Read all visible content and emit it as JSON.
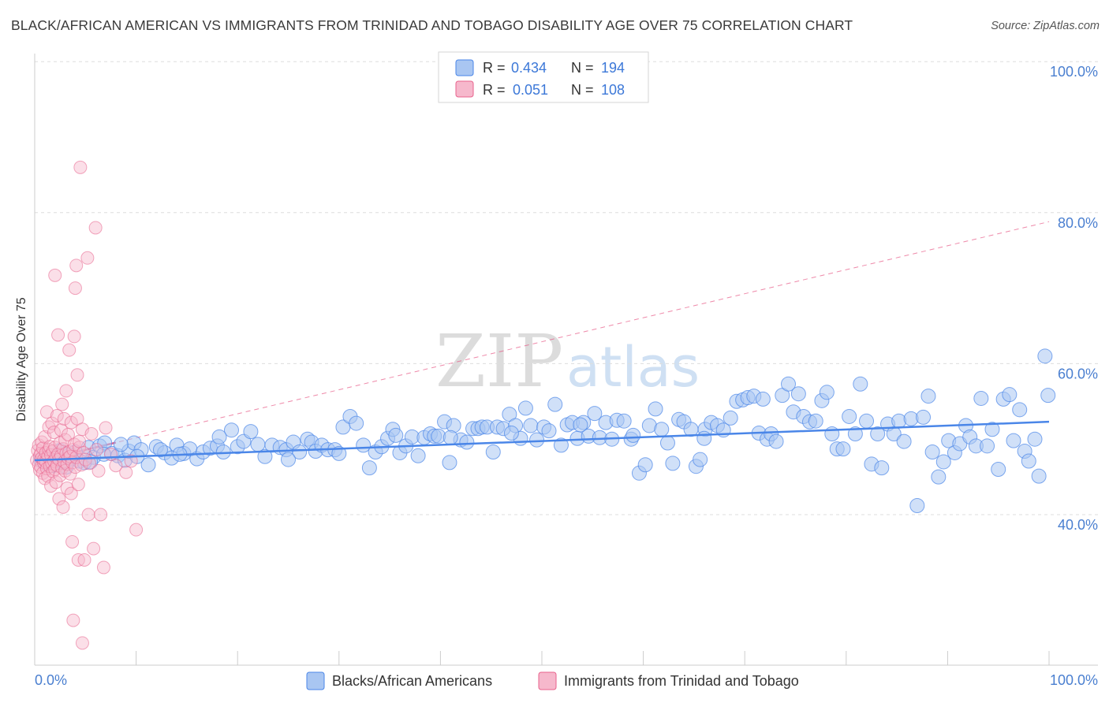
{
  "title": "BLACK/AFRICAN AMERICAN VS IMMIGRANTS FROM TRINIDAD AND TOBAGO DISABILITY AGE OVER 75 CORRELATION CHART",
  "source": "Source: ZipAtlas.com",
  "watermark": {
    "part1": "ZIP",
    "part2": "atlas"
  },
  "colors": {
    "blue": "#4a86e8",
    "blue_fill": "#a9c6f2",
    "pink": "#e8628c",
    "pink_fill": "#f6b8cc",
    "axis_label": "#4a7fd0"
  },
  "legend": {
    "rows": [
      {
        "r_label": "R =",
        "r_value": "0.434",
        "n_label": "N =",
        "n_value": "194"
      },
      {
        "r_label": "R =",
        "r_value": "0.051",
        "n_label": "N =",
        "n_value": "108"
      }
    ]
  },
  "bottom_legend": [
    "Blacks/African Americans",
    "Immigrants from Trinidad and Tobago"
  ],
  "chart_data": {
    "type": "scatter",
    "title": "BLACK/AFRICAN AMERICAN VS IMMIGRANTS FROM TRINIDAD AND TOBAGO DISABILITY AGE OVER 75 CORRELATION CHART",
    "xlabel": "",
    "ylabel": "Disability Age Over 75",
    "xlim": [
      0,
      100
    ],
    "ylim": [
      20,
      102
    ],
    "x_tick_labels": [
      "0.0%",
      "100.0%"
    ],
    "y_ticks": [
      40,
      60,
      80,
      100
    ],
    "y_tick_labels": [
      "40.0%",
      "60.0%",
      "80.0%",
      "100.0%"
    ],
    "grid": "horizontal dashed",
    "legend_placement": "top-center",
    "series": [
      {
        "name": "Blacks/African Americans",
        "color": "#4a86e8",
        "R": 0.434,
        "N": 194,
        "trend": {
          "x": [
            0,
            100
          ],
          "y": [
            47.2,
            52.3
          ]
        },
        "points": [
          [
            0.6,
            47.2
          ],
          [
            1.0,
            46.8
          ],
          [
            1.3,
            47.5
          ],
          [
            1.8,
            46.5
          ],
          [
            2.2,
            47.8
          ],
          [
            2.7,
            47.0
          ],
          [
            3.1,
            46.3
          ],
          [
            3.6,
            47.4
          ],
          [
            4.0,
            48.3
          ],
          [
            4.4,
            47.1
          ],
          [
            4.9,
            46.9
          ],
          [
            5.3,
            48.9
          ],
          [
            5.8,
            47.6
          ],
          [
            6.4,
            49.1
          ],
          [
            6.9,
            49.5
          ],
          [
            7.6,
            48.1
          ],
          [
            8.2,
            47.8
          ],
          [
            8.9,
            47.2
          ],
          [
            9.3,
            48.4
          ],
          [
            9.8,
            49.5
          ],
          [
            10.5,
            48.6
          ],
          [
            11.2,
            46.6
          ],
          [
            12.0,
            49.0
          ],
          [
            12.8,
            48.2
          ],
          [
            13.5,
            47.5
          ],
          [
            14.0,
            49.2
          ],
          [
            14.7,
            48.1
          ],
          [
            15.3,
            48.7
          ],
          [
            16.0,
            47.4
          ],
          [
            16.6,
            48.3
          ],
          [
            17.3,
            48.8
          ],
          [
            18.0,
            49.1
          ],
          [
            18.6,
            48.3
          ],
          [
            19.4,
            51.2
          ],
          [
            20.0,
            49.0
          ],
          [
            20.6,
            49.7
          ],
          [
            21.3,
            51.0
          ],
          [
            22.0,
            49.3
          ],
          [
            22.7,
            47.7
          ],
          [
            23.4,
            49.2
          ],
          [
            24.2,
            48.9
          ],
          [
            24.8,
            48.6
          ],
          [
            25.5,
            49.6
          ],
          [
            26.1,
            48.3
          ],
          [
            26.9,
            50.0
          ],
          [
            27.3,
            49.6
          ],
          [
            27.7,
            48.4
          ],
          [
            28.3,
            49.2
          ],
          [
            28.9,
            48.6
          ],
          [
            29.6,
            48.6
          ],
          [
            30.4,
            51.6
          ],
          [
            31.1,
            53.0
          ],
          [
            31.7,
            52.1
          ],
          [
            32.4,
            49.2
          ],
          [
            33.0,
            46.2
          ],
          [
            33.6,
            48.3
          ],
          [
            34.2,
            49.0
          ],
          [
            34.8,
            50.1
          ],
          [
            35.3,
            51.3
          ],
          [
            36.0,
            48.2
          ],
          [
            36.6,
            49.1
          ],
          [
            37.2,
            50.3
          ],
          [
            37.8,
            47.8
          ],
          [
            38.4,
            50.2
          ],
          [
            39.0,
            50.7
          ],
          [
            39.4,
            50.4
          ],
          [
            39.8,
            50.4
          ],
          [
            40.4,
            52.3
          ],
          [
            40.9,
            46.9
          ],
          [
            41.3,
            51.8
          ],
          [
            42.0,
            49.9
          ],
          [
            42.6,
            49.6
          ],
          [
            43.2,
            51.4
          ],
          [
            43.7,
            51.4
          ],
          [
            44.1,
            51.6
          ],
          [
            44.6,
            51.6
          ],
          [
            45.2,
            48.3
          ],
          [
            45.6,
            51.6
          ],
          [
            46.2,
            51.4
          ],
          [
            46.8,
            53.3
          ],
          [
            47.4,
            51.8
          ],
          [
            47.9,
            50.1
          ],
          [
            48.4,
            54.1
          ],
          [
            48.9,
            51.8
          ],
          [
            49.5,
            49.9
          ],
          [
            50.2,
            51.6
          ],
          [
            50.7,
            51.1
          ],
          [
            51.3,
            54.6
          ],
          [
            51.9,
            49.2
          ],
          [
            52.5,
            51.9
          ],
          [
            53.0,
            52.2
          ],
          [
            53.5,
            50.1
          ],
          [
            54.1,
            52.2
          ],
          [
            54.6,
            50.4
          ],
          [
            55.2,
            53.4
          ],
          [
            55.7,
            50.2
          ],
          [
            56.3,
            52.2
          ],
          [
            56.9,
            50.0
          ],
          [
            57.4,
            52.5
          ],
          [
            58.1,
            52.4
          ],
          [
            58.8,
            50.0
          ],
          [
            59.6,
            45.5
          ],
          [
            60.2,
            46.6
          ],
          [
            60.6,
            51.8
          ],
          [
            61.2,
            54.0
          ],
          [
            61.8,
            51.3
          ],
          [
            62.4,
            49.5
          ],
          [
            62.9,
            46.8
          ],
          [
            63.5,
            52.6
          ],
          [
            64.0,
            52.3
          ],
          [
            64.7,
            51.3
          ],
          [
            65.2,
            46.4
          ],
          [
            65.6,
            47.3
          ],
          [
            66.1,
            51.3
          ],
          [
            66.7,
            52.2
          ],
          [
            67.3,
            51.8
          ],
          [
            67.9,
            51.2
          ],
          [
            68.6,
            52.8
          ],
          [
            69.2,
            55.0
          ],
          [
            69.8,
            55.2
          ],
          [
            70.3,
            55.5
          ],
          [
            70.9,
            55.7
          ],
          [
            71.4,
            50.8
          ],
          [
            71.8,
            55.3
          ],
          [
            72.2,
            50.0
          ],
          [
            72.6,
            50.7
          ],
          [
            73.1,
            49.7
          ],
          [
            73.7,
            55.8
          ],
          [
            74.3,
            57.3
          ],
          [
            74.8,
            53.6
          ],
          [
            75.3,
            56.0
          ],
          [
            75.8,
            53.0
          ],
          [
            76.4,
            52.3
          ],
          [
            77.0,
            52.4
          ],
          [
            77.6,
            55.1
          ],
          [
            78.1,
            56.2
          ],
          [
            78.6,
            50.7
          ],
          [
            79.1,
            48.7
          ],
          [
            79.7,
            48.7
          ],
          [
            80.3,
            53.0
          ],
          [
            80.9,
            50.7
          ],
          [
            81.4,
            57.3
          ],
          [
            82.0,
            52.4
          ],
          [
            82.5,
            46.7
          ],
          [
            83.1,
            50.7
          ],
          [
            83.5,
            46.2
          ],
          [
            84.1,
            52.0
          ],
          [
            84.7,
            50.7
          ],
          [
            85.2,
            52.4
          ],
          [
            85.7,
            49.7
          ],
          [
            86.4,
            52.7
          ],
          [
            87.0,
            41.2
          ],
          [
            87.6,
            52.9
          ],
          [
            88.1,
            55.7
          ],
          [
            88.5,
            48.3
          ],
          [
            89.1,
            45.0
          ],
          [
            89.6,
            47.0
          ],
          [
            90.1,
            49.8
          ],
          [
            90.7,
            48.2
          ],
          [
            91.2,
            49.4
          ],
          [
            91.8,
            51.8
          ],
          [
            92.2,
            50.3
          ],
          [
            92.8,
            49.1
          ],
          [
            93.3,
            55.4
          ],
          [
            93.9,
            49.1
          ],
          [
            94.4,
            51.3
          ],
          [
            95.0,
            46.0
          ],
          [
            95.5,
            55.3
          ],
          [
            96.1,
            55.9
          ],
          [
            96.5,
            49.8
          ],
          [
            97.1,
            53.9
          ],
          [
            97.6,
            48.4
          ],
          [
            98.0,
            47.1
          ],
          [
            98.6,
            50.0
          ],
          [
            99.0,
            45.1
          ],
          [
            99.6,
            61.0
          ],
          [
            99.9,
            55.8
          ],
          [
            2.5,
            48.5
          ],
          [
            3.4,
            47.9
          ],
          [
            5.5,
            47.0
          ],
          [
            6.8,
            48.0
          ],
          [
            8.5,
            49.3
          ],
          [
            10.1,
            47.7
          ],
          [
            12.4,
            48.6
          ],
          [
            14.3,
            48.0
          ],
          [
            18.2,
            50.3
          ],
          [
            25.0,
            47.3
          ],
          [
            30.0,
            48.1
          ],
          [
            35.6,
            50.5
          ],
          [
            41.0,
            50.2
          ],
          [
            47.0,
            50.8
          ],
          [
            53.8,
            51.9
          ],
          [
            59.0,
            50.5
          ],
          [
            66.0,
            50.1
          ]
        ]
      },
      {
        "name": "Immigrants from Trinidad and Tobago",
        "color": "#e8628c",
        "R": 0.051,
        "N": 108,
        "trend": {
          "x": [
            0,
            100
          ],
          "y": [
            47.0,
            78.8
          ]
        },
        "points": [
          [
            0.2,
            47.2
          ],
          [
            0.3,
            48.5
          ],
          [
            0.4,
            46.6
          ],
          [
            0.4,
            49.2
          ],
          [
            0.5,
            45.9
          ],
          [
            0.5,
            47.8
          ],
          [
            0.6,
            48.1
          ],
          [
            0.6,
            46.3
          ],
          [
            0.7,
            47.5
          ],
          [
            0.7,
            49.6
          ],
          [
            0.8,
            45.5
          ],
          [
            0.8,
            48.8
          ],
          [
            0.9,
            46.9
          ],
          [
            0.9,
            47.3
          ],
          [
            1.0,
            44.8
          ],
          [
            1.0,
            50.3
          ],
          [
            1.1,
            47.0
          ],
          [
            1.1,
            48.2
          ],
          [
            1.2,
            46.1
          ],
          [
            1.2,
            53.6
          ],
          [
            1.3,
            47.7
          ],
          [
            1.3,
            45.1
          ],
          [
            1.4,
            48.6
          ],
          [
            1.4,
            51.6
          ],
          [
            1.5,
            46.4
          ],
          [
            1.5,
            49.0
          ],
          [
            1.6,
            47.9
          ],
          [
            1.6,
            43.8
          ],
          [
            1.7,
            46.8
          ],
          [
            1.7,
            52.1
          ],
          [
            1.8,
            48.4
          ],
          [
            1.8,
            45.7
          ],
          [
            1.9,
            47.1
          ],
          [
            1.9,
            50.9
          ],
          [
            2.0,
            46.0
          ],
          [
            2.0,
            48.9
          ],
          [
            2.1,
            47.6
          ],
          [
            2.1,
            44.3
          ],
          [
            2.2,
            53.1
          ],
          [
            2.2,
            46.5
          ],
          [
            2.3,
            48.0
          ],
          [
            2.3,
            63.8
          ],
          [
            2.4,
            47.3
          ],
          [
            2.4,
            42.1
          ],
          [
            2.5,
            49.5
          ],
          [
            2.5,
            45.2
          ],
          [
            2.6,
            51.2
          ],
          [
            2.6,
            47.8
          ],
          [
            2.7,
            46.2
          ],
          [
            2.7,
            54.6
          ],
          [
            2.8,
            48.7
          ],
          [
            2.8,
            41.0
          ],
          [
            2.9,
            47.0
          ],
          [
            2.9,
            52.7
          ],
          [
            3.0,
            45.8
          ],
          [
            3.0,
            49.9
          ],
          [
            3.1,
            48.1
          ],
          [
            3.1,
            56.4
          ],
          [
            3.2,
            46.7
          ],
          [
            3.2,
            43.5
          ],
          [
            3.3,
            47.5
          ],
          [
            3.3,
            50.6
          ],
          [
            3.4,
            48.3
          ],
          [
            3.4,
            61.8
          ],
          [
            3.5,
            45.4
          ],
          [
            3.5,
            47.7
          ],
          [
            3.6,
            52.2
          ],
          [
            3.6,
            42.8
          ],
          [
            3.7,
            46.9
          ],
          [
            3.7,
            36.4
          ],
          [
            3.8,
            48.6
          ],
          [
            3.8,
            26.0
          ],
          [
            3.9,
            49.3
          ],
          [
            3.9,
            63.6
          ],
          [
            4.0,
            46.3
          ],
          [
            4.0,
            70.0
          ],
          [
            4.1,
            47.6
          ],
          [
            4.1,
            73.0
          ],
          [
            4.2,
            52.7
          ],
          [
            4.2,
            58.5
          ],
          [
            4.3,
            44.0
          ],
          [
            4.3,
            34.0
          ],
          [
            4.4,
            48.9
          ],
          [
            4.4,
            49.7
          ],
          [
            4.5,
            86.0
          ],
          [
            4.6,
            46.6
          ],
          [
            4.7,
            51.3
          ],
          [
            4.7,
            23.0
          ],
          [
            4.8,
            48.2
          ],
          [
            4.9,
            34.0
          ],
          [
            5.0,
            47.3
          ],
          [
            5.2,
            74.0
          ],
          [
            5.3,
            40.0
          ],
          [
            5.4,
            46.8
          ],
          [
            5.6,
            50.7
          ],
          [
            5.8,
            35.5
          ],
          [
            6.0,
            78.0
          ],
          [
            6.1,
            48.6
          ],
          [
            6.3,
            45.8
          ],
          [
            6.5,
            40.0
          ],
          [
            6.8,
            33.0
          ],
          [
            7.0,
            51.5
          ],
          [
            7.5,
            48.0
          ],
          [
            8.0,
            46.5
          ],
          [
            9.0,
            45.6
          ],
          [
            9.5,
            47.1
          ],
          [
            10.0,
            38.0
          ],
          [
            2.0,
            71.7
          ]
        ]
      }
    ]
  }
}
